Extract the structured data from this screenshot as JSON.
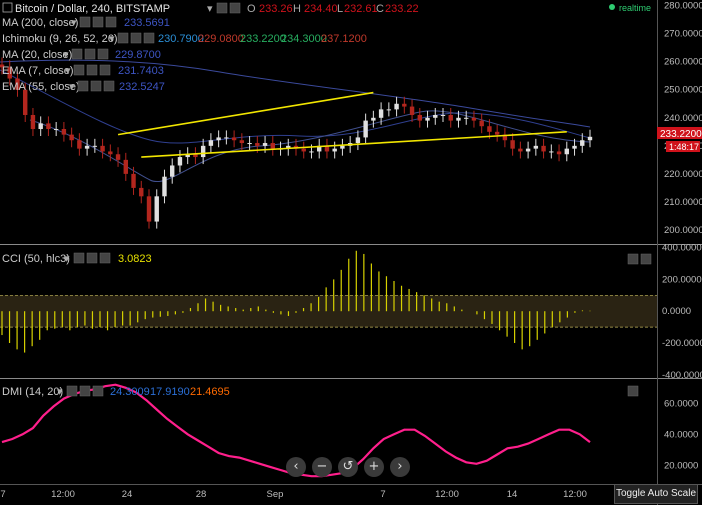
{
  "header": {
    "symbol": "Bitcoin / Dollar, 240, BITSTAMP",
    "o_label": "O",
    "o_value": "233.26",
    "h_label": "H",
    "h_value": "234.40",
    "l_label": "L",
    "l_value": "232.61",
    "c_label": "C",
    "c_value": "233.22",
    "realtime": "realtime"
  },
  "indicators": {
    "ma200": {
      "label": "MA (200, close)",
      "value": "233.5691"
    },
    "ichimoku": {
      "label": "Ichimoku (9, 26, 52, 26)",
      "v1": "230.7900",
      "v2": "229.0800",
      "v3": "233.2200",
      "v4": "234.3000",
      "v5": "237.1200"
    },
    "ma20": {
      "label": "MA (20, close)",
      "value": "229.8700"
    },
    "ema7": {
      "label": "EMA (7, close)",
      "value": "231.7403"
    },
    "ema55": {
      "label": "EMA (55, close)",
      "value": "232.5247"
    },
    "cci": {
      "label": "CCI (50, hlc3)",
      "value": "3.0823"
    },
    "dmi": {
      "label": "DMI (14, 20)",
      "v1": "24.3009",
      "v2": "17.9190",
      "v3": "21.4695"
    }
  },
  "price_badge": {
    "price": "233.2200",
    "countdown": "1:48:17"
  },
  "toggle_label": "Toggle Auto Scale",
  "colors": {
    "price_up": "#e0e0e0",
    "price_down": "#b3261e",
    "trendline": "#f2e600",
    "cci": "#d7d200",
    "dmi": "#ff1f8c",
    "ma": "#3b4a9c",
    "badge": "#d0121b"
  },
  "chart_data": [
    {
      "type": "candlestick",
      "x_ticks": [
        "7",
        "12:00",
        "24",
        "28",
        "Sep",
        "7",
        "12:00",
        "14",
        "12:00"
      ],
      "y_ticks": [
        "280.0000",
        "270.0000",
        "260.0000",
        "250.0000",
        "240.0000",
        "230.0000",
        "220.0000",
        "210.0000",
        "200.0000"
      ],
      "ylim": [
        195,
        282
      ],
      "close": [
        258,
        254,
        250,
        241,
        236,
        238,
        236,
        236,
        234,
        232,
        229,
        230,
        230,
        228,
        227,
        225,
        220,
        215,
        212,
        203,
        212,
        219,
        223,
        226,
        227,
        226,
        230,
        232,
        233,
        233,
        232,
        231,
        231,
        230,
        231,
        229,
        229,
        230,
        229,
        228,
        228,
        230,
        228,
        229,
        230,
        231,
        233,
        239,
        240,
        243,
        243,
        245,
        244,
        241,
        239,
        240,
        241,
        241,
        239,
        240,
        240,
        239,
        237,
        235,
        234,
        232,
        229,
        228,
        229,
        230,
        228,
        228,
        227,
        229,
        230,
        232,
        233.22
      ],
      "trendlines": [
        {
          "from": [
            15,
            234
          ],
          "to": [
            48,
            249
          ]
        },
        {
          "from": [
            18,
            226
          ],
          "to": [
            73,
            235
          ]
        }
      ]
    },
    {
      "type": "bar",
      "name": "CCI (50, hlc3)",
      "ylim": [
        -420,
        410
      ],
      "y_ticks": [
        "400.0000",
        "200.0000",
        "0.0000",
        "-200.0000",
        "-400.0000"
      ],
      "bands": [
        100,
        -100
      ],
      "values": [
        -150,
        -200,
        -240,
        -260,
        -220,
        -180,
        -120,
        -110,
        -100,
        -120,
        -100,
        -90,
        -110,
        -100,
        -120,
        -100,
        -90,
        -90,
        -70,
        -50,
        -40,
        -35,
        -30,
        -20,
        -10,
        20,
        50,
        80,
        60,
        40,
        30,
        20,
        10,
        20,
        30,
        10,
        -10,
        -20,
        -30,
        -10,
        20,
        50,
        90,
        150,
        200,
        260,
        330,
        380,
        360,
        300,
        250,
        220,
        190,
        160,
        140,
        120,
        100,
        80,
        60,
        50,
        30,
        10,
        0,
        -20,
        -50,
        -80,
        -120,
        -160,
        -200,
        -240,
        -220,
        -180,
        -140,
        -100,
        -70,
        -40,
        -10,
        5,
        3
      ]
    },
    {
      "type": "line",
      "name": "DMI (14, 20)",
      "ylim": [
        8,
        75
      ],
      "y_ticks": [
        "60.0000",
        "40.0000",
        "20.0000"
      ],
      "values": [
        35,
        37,
        40,
        44,
        52,
        58,
        63,
        66,
        68,
        69,
        71,
        72,
        70,
        67,
        62,
        56,
        50,
        45,
        40,
        36,
        32,
        28,
        26,
        25,
        23,
        21,
        19,
        17,
        15,
        14,
        13,
        13,
        14,
        15,
        18,
        24,
        31,
        37,
        40,
        43,
        43,
        39,
        34,
        29,
        25,
        22,
        21,
        23,
        27,
        31,
        32,
        34,
        37,
        40,
        43,
        43,
        40,
        35
      ]
    }
  ]
}
